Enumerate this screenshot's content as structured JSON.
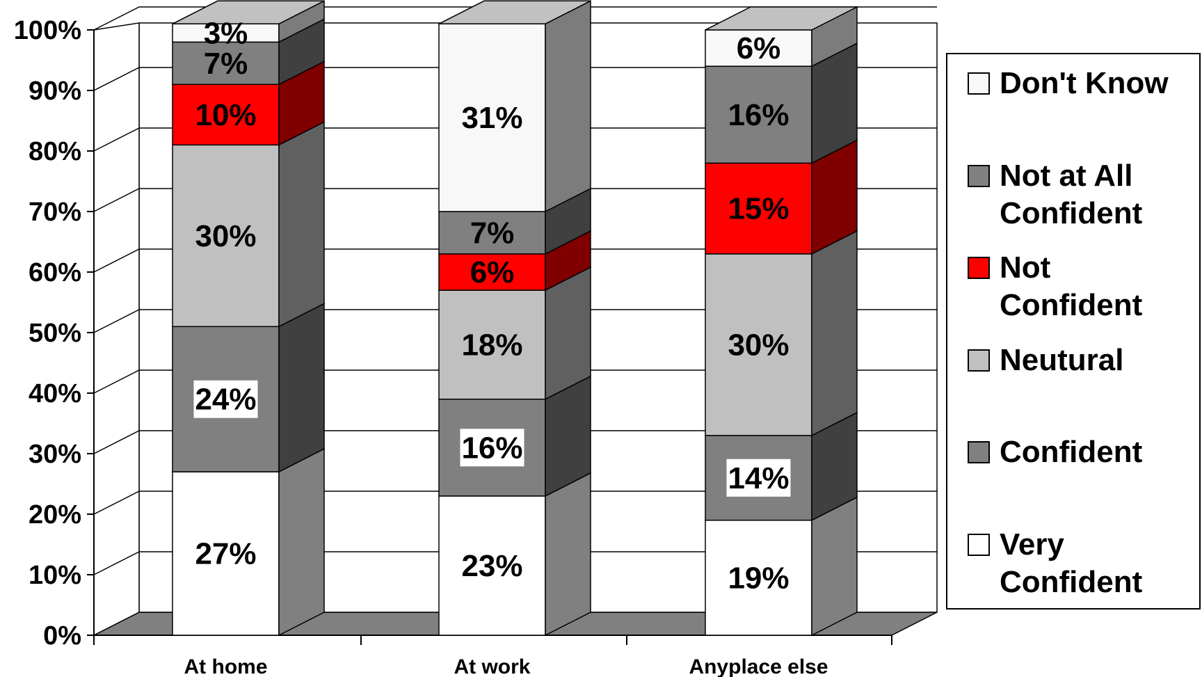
{
  "chart_data": {
    "type": "bar",
    "stacked": true,
    "three_d": true,
    "categories": [
      "At home",
      "At work",
      "Anyplace else"
    ],
    "series": [
      {
        "name": "Very Confident",
        "color": "#ffffff",
        "values": [
          27,
          23,
          19
        ]
      },
      {
        "name": "Confident",
        "color": "#808080",
        "values": [
          24,
          16,
          14
        ]
      },
      {
        "name": "Neutural",
        "color": "#c0c0c0",
        "values": [
          30,
          18,
          30
        ]
      },
      {
        "name": "Not Confident",
        "color": "#ff0000",
        "values": [
          10,
          6,
          15
        ]
      },
      {
        "name": "Not at All Confident",
        "color": "#808080",
        "values": [
          7,
          7,
          16
        ]
      },
      {
        "name": "Don't Know",
        "color": "#f8f8f8",
        "values": [
          3,
          31,
          6
        ]
      }
    ],
    "data_labels": [
      [
        "27%",
        "24%",
        "30%",
        "10%",
        "7%",
        "3%"
      ],
      [
        "23%",
        "16%",
        "18%",
        "6%",
        "7%",
        "31%"
      ],
      [
        "19%",
        "14%",
        "30%",
        "15%",
        "16%",
        "6%"
      ]
    ],
    "y_ticks": [
      "0%",
      "10%",
      "20%",
      "30%",
      "40%",
      "50%",
      "60%",
      "70%",
      "80%",
      "90%",
      "100%"
    ],
    "ylim": [
      0,
      100
    ],
    "grid": true,
    "legend": {
      "placement": "right",
      "entries": [
        {
          "lines": [
            "Don't Know"
          ],
          "color": "#f8f8f8"
        },
        {
          "lines": [
            "Not at All",
            "Confident"
          ],
          "color": "#808080"
        },
        {
          "lines": [
            "Not",
            "Confident"
          ],
          "color": "#ff0000"
        },
        {
          "lines": [
            "Neutural"
          ],
          "color": "#c0c0c0"
        },
        {
          "lines": [
            "Confident"
          ],
          "color": "#808080"
        },
        {
          "lines": [
            "Very",
            "Confident"
          ],
          "color": "#ffffff"
        }
      ]
    }
  }
}
